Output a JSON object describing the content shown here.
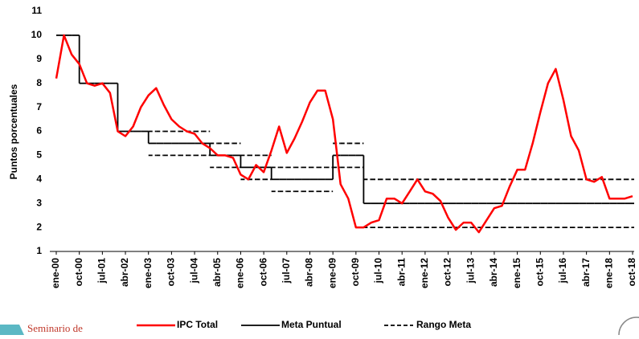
{
  "chart_data": {
    "type": "line",
    "ylabel": "Puntos porcentuales",
    "categories": [
      "ene-00",
      null,
      null,
      "oct-00",
      null,
      null,
      "jul-01",
      null,
      null,
      "abr-02",
      null,
      null,
      "ene-03",
      null,
      null,
      "oct-03",
      null,
      null,
      "jul-04",
      null,
      null,
      "abr-05",
      null,
      null,
      "ene-06",
      null,
      null,
      "oct-06",
      null,
      null,
      "jul-07",
      null,
      null,
      "abr-08",
      null,
      null,
      "ene-09",
      null,
      null,
      "oct-09",
      null,
      null,
      "jul-10",
      null,
      null,
      "abr-11",
      null,
      null,
      "ene-12",
      null,
      null,
      "oct-12",
      null,
      null,
      "jul-13",
      null,
      null,
      "abr-14",
      null,
      null,
      "ene-15",
      null,
      null,
      "oct-15",
      null,
      null,
      "jul-16",
      null,
      null,
      "abr-17",
      null,
      null,
      "ene-18",
      null,
      null,
      "oct-18"
    ],
    "series": [
      {
        "name": "IPC Total",
        "color": "#ff0000",
        "values": [
          8.2,
          10.0,
          9.2,
          8.8,
          8.0,
          7.9,
          8.0,
          7.6,
          6.0,
          5.8,
          6.2,
          7.0,
          7.5,
          7.8,
          7.1,
          6.5,
          6.2,
          6.0,
          5.9,
          5.5,
          5.3,
          5.0,
          5.0,
          4.9,
          4.2,
          4.0,
          4.6,
          4.3,
          5.2,
          6.2,
          5.1,
          5.7,
          6.4,
          7.2,
          7.7,
          7.7,
          6.5,
          3.8,
          3.2,
          2.0,
          2.0,
          2.2,
          2.3,
          3.2,
          3.2,
          3.0,
          3.5,
          4.0,
          3.5,
          3.4,
          3.1,
          2.4,
          1.9,
          2.2,
          2.2,
          1.8,
          2.3,
          2.8,
          2.9,
          3.7,
          4.4,
          4.4,
          5.5,
          6.8,
          8.0,
          8.6,
          7.3,
          5.8,
          5.2,
          4.0,
          3.9,
          4.1,
          3.2,
          3.2,
          3.2,
          3.3
        ]
      },
      {
        "name": "Meta Puntual",
        "color": "#000000",
        "values": [
          10,
          10,
          10,
          8,
          8,
          8,
          8,
          8,
          6,
          6,
          6,
          6,
          5.5,
          5.5,
          5.5,
          5.5,
          5.5,
          5.5,
          5.5,
          5.5,
          5,
          5,
          5,
          5,
          4.5,
          4.5,
          4.5,
          4.5,
          4,
          4,
          4,
          4,
          4,
          4,
          4,
          4,
          5,
          5,
          5,
          5,
          3,
          3,
          3,
          3,
          3,
          3,
          3,
          3,
          3,
          3,
          3,
          3,
          3,
          3,
          3,
          3,
          3,
          3,
          3,
          3,
          3,
          3,
          3,
          3,
          3,
          3,
          3,
          3,
          3,
          3,
          3,
          3,
          3,
          3,
          3,
          3
        ]
      }
    ],
    "range": {
      "name": "Rango Meta",
      "color": "#000000",
      "upper": [
        null,
        null,
        null,
        null,
        null,
        null,
        null,
        null,
        null,
        null,
        null,
        null,
        6,
        6,
        6,
        6,
        6,
        6,
        6,
        6,
        5.5,
        5.5,
        5.5,
        5.5,
        5,
        5,
        5,
        5,
        4.5,
        4.5,
        4.5,
        4.5,
        4.5,
        4.5,
        4.5,
        4.5,
        5.5,
        5.5,
        5.5,
        5.5,
        4,
        4,
        4,
        4,
        4,
        4,
        4,
        4,
        4,
        4,
        4,
        4,
        4,
        4,
        4,
        4,
        4,
        4,
        4,
        4,
        4,
        4,
        4,
        4,
        4,
        4,
        4,
        4,
        4,
        4,
        4,
        4,
        4,
        4,
        4,
        4
      ],
      "lower": [
        null,
        null,
        null,
        null,
        null,
        null,
        null,
        null,
        null,
        null,
        null,
        null,
        5,
        5,
        5,
        5,
        5,
        5,
        5,
        5,
        4.5,
        4.5,
        4.5,
        4.5,
        4,
        4,
        4,
        4,
        3.5,
        3.5,
        3.5,
        3.5,
        3.5,
        3.5,
        3.5,
        3.5,
        4.5,
        4.5,
        4.5,
        4.5,
        2,
        2,
        2,
        2,
        2,
        2,
        2,
        2,
        2,
        2,
        2,
        2,
        2,
        2,
        2,
        2,
        2,
        2,
        2,
        2,
        2,
        2,
        2,
        2,
        2,
        2,
        2,
        2,
        2,
        2,
        2,
        2,
        2,
        2,
        2,
        2
      ]
    },
    "ylim": [
      1,
      11
    ],
    "yticks": [
      1,
      2,
      3,
      4,
      5,
      6,
      7,
      8,
      9,
      10,
      11
    ],
    "grid": false
  },
  "logo_text": "Seminario de"
}
